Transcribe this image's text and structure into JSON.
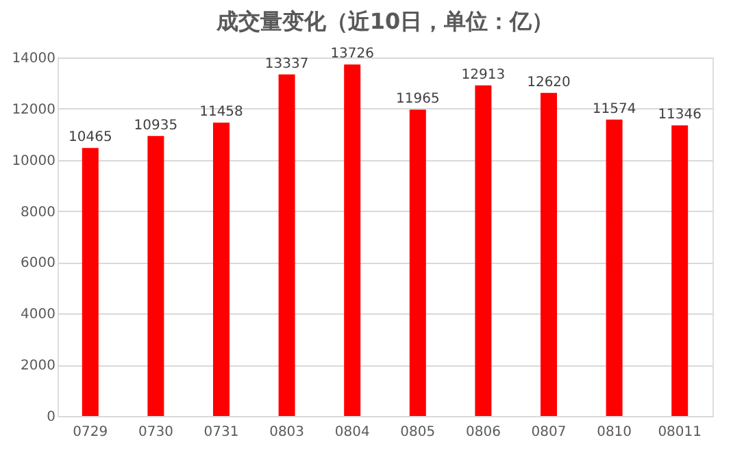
{
  "chart_data": {
    "type": "bar",
    "title": "成交量变化（近10日，单位：亿）",
    "categories": [
      "0729",
      "0730",
      "0731",
      "0803",
      "0804",
      "0805",
      "0806",
      "0807",
      "0810",
      "08011"
    ],
    "values": [
      10465,
      10935,
      11458,
      13337,
      13726,
      11965,
      12913,
      12620,
      11574,
      11346
    ],
    "color": "#ff0000",
    "ylim": [
      0,
      14000
    ],
    "yticks": [
      0,
      2000,
      4000,
      6000,
      8000,
      10000,
      12000,
      14000
    ],
    "grid": "y",
    "data_labels": true
  }
}
